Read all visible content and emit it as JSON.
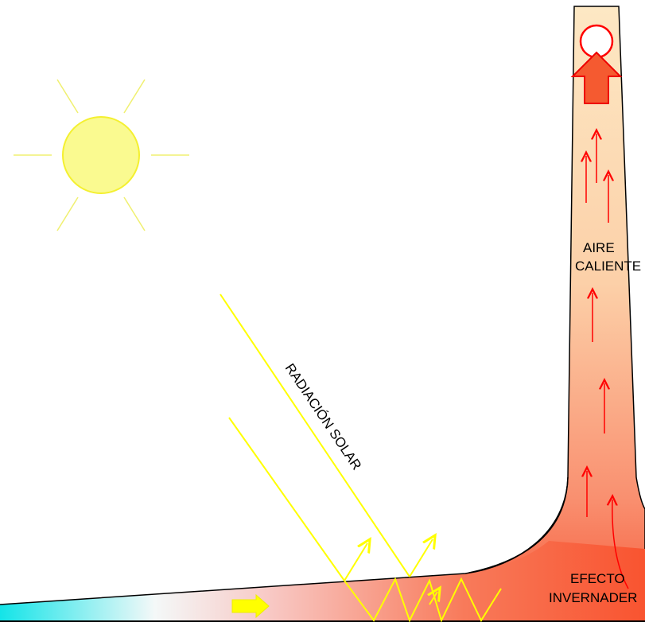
{
  "labels": {
    "tower": [
      "AIRE",
      "CALIENTE"
    ],
    "radiation": "RADIACIÓN SOLAR",
    "greenhouse": [
      "EFECTO",
      "INVERNADER"
    ]
  }
}
